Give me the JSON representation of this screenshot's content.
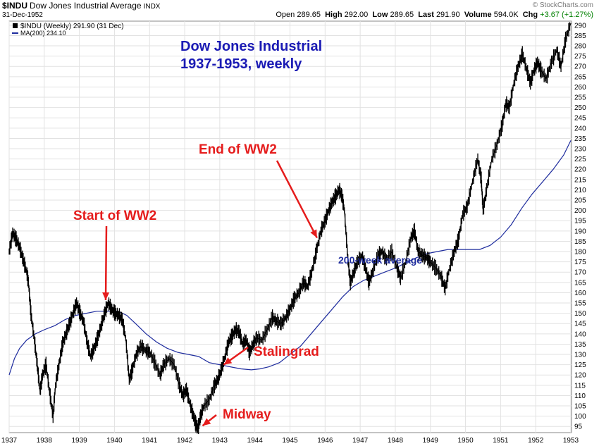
{
  "header": {
    "symbol": "$INDU",
    "full_name": "Dow Jones Industrial Average",
    "exchange": "INDX",
    "date": "31-Dec-1952",
    "open_label": "Open",
    "open": "289.65",
    "high_label": "High",
    "high": "292.00",
    "low_label": "Low",
    "low": "289.65",
    "last_label": "Last",
    "last": "291.90",
    "volume_label": "Volume",
    "volume": "594.0K",
    "chg_label": "Chg",
    "chg": "+3.67 (+1.27%)",
    "credit": "© StockCharts.com"
  },
  "legend": {
    "price": "$INDU (Weekly) 291.90 (31 Dec)",
    "ma": "MA(200) 234.10"
  },
  "colors": {
    "price": "#000000",
    "ma": "#1f2d9e",
    "title": "#1a1ab4",
    "annotation": "#e51c1c",
    "chg": "#008000"
  },
  "chart_data": {
    "type": "line",
    "title": "Dow Jones Industrial\n1937-1953, weekly",
    "x_ticks": [
      "1937",
      "1938",
      "1939",
      "1940",
      "1941",
      "1942",
      "1943",
      "1944",
      "1945",
      "1946",
      "1947",
      "1948",
      "1949",
      "1950",
      "1951",
      "1952",
      "1953"
    ],
    "y_ticks": [
      95,
      100,
      105,
      110,
      115,
      120,
      125,
      130,
      135,
      140,
      145,
      150,
      155,
      160,
      165,
      170,
      175,
      180,
      185,
      190,
      195,
      200,
      205,
      210,
      215,
      220,
      225,
      230,
      235,
      240,
      245,
      250,
      255,
      260,
      265,
      270,
      275,
      280,
      285,
      290
    ],
    "ylim": [
      92,
      292
    ],
    "grid": true,
    "series": [
      {
        "name": "$INDU (Weekly)",
        "points": [
          [
            1937.0,
            180
          ],
          [
            1937.1,
            189
          ],
          [
            1937.2,
            186
          ],
          [
            1937.3,
            182
          ],
          [
            1937.4,
            176
          ],
          [
            1937.5,
            170
          ],
          [
            1937.55,
            165
          ],
          [
            1937.62,
            150
          ],
          [
            1937.72,
            137
          ],
          [
            1937.8,
            125
          ],
          [
            1937.88,
            112
          ],
          [
            1937.95,
            120
          ],
          [
            1938.05,
            125
          ],
          [
            1938.15,
            112
          ],
          [
            1938.25,
            100
          ],
          [
            1938.32,
            115
          ],
          [
            1938.42,
            125
          ],
          [
            1938.52,
            135
          ],
          [
            1938.62,
            140
          ],
          [
            1938.72,
            145
          ],
          [
            1938.82,
            150
          ],
          [
            1938.92,
            155
          ],
          [
            1939.02,
            150
          ],
          [
            1939.12,
            146
          ],
          [
            1939.22,
            136
          ],
          [
            1939.32,
            129
          ],
          [
            1939.42,
            133
          ],
          [
            1939.52,
            138
          ],
          [
            1939.62,
            144
          ],
          [
            1939.72,
            150
          ],
          [
            1939.82,
            155
          ],
          [
            1939.92,
            152
          ],
          [
            1940.02,
            150
          ],
          [
            1940.12,
            149
          ],
          [
            1940.22,
            147
          ],
          [
            1940.32,
            138
          ],
          [
            1940.42,
            118
          ],
          [
            1940.5,
            122
          ],
          [
            1940.62,
            130
          ],
          [
            1940.75,
            134
          ],
          [
            1940.88,
            132
          ],
          [
            1941.0,
            131
          ],
          [
            1941.15,
            126
          ],
          [
            1941.3,
            120
          ],
          [
            1941.4,
            125
          ],
          [
            1941.55,
            128
          ],
          [
            1941.7,
            125
          ],
          [
            1941.85,
            115
          ],
          [
            1941.95,
            110
          ],
          [
            1942.05,
            113
          ],
          [
            1942.15,
            106
          ],
          [
            1942.25,
            100
          ],
          [
            1942.32,
            96
          ],
          [
            1942.38,
            94
          ],
          [
            1942.45,
            100
          ],
          [
            1942.55,
            105
          ],
          [
            1942.7,
            108
          ],
          [
            1942.85,
            115
          ],
          [
            1942.95,
            118
          ],
          [
            1943.05,
            123
          ],
          [
            1943.15,
            129
          ],
          [
            1943.25,
            136
          ],
          [
            1943.35,
            139
          ],
          [
            1943.45,
            142
          ],
          [
            1943.55,
            141
          ],
          [
            1943.65,
            135
          ],
          [
            1943.75,
            137
          ],
          [
            1943.85,
            131
          ],
          [
            1943.95,
            135
          ],
          [
            1944.05,
            138
          ],
          [
            1944.2,
            137
          ],
          [
            1944.35,
            142
          ],
          [
            1944.5,
            148
          ],
          [
            1944.62,
            146
          ],
          [
            1944.75,
            145
          ],
          [
            1944.88,
            148
          ],
          [
            1945.0,
            152
          ],
          [
            1945.12,
            157
          ],
          [
            1945.25,
            160
          ],
          [
            1945.38,
            165
          ],
          [
            1945.5,
            163
          ],
          [
            1945.62,
            170
          ],
          [
            1945.75,
            180
          ],
          [
            1945.88,
            190
          ],
          [
            1946.0,
            195
          ],
          [
            1946.1,
            200
          ],
          [
            1946.2,
            204
          ],
          [
            1946.3,
            207
          ],
          [
            1946.4,
            210
          ],
          [
            1946.48,
            207
          ],
          [
            1946.55,
            200
          ],
          [
            1946.65,
            176
          ],
          [
            1946.72,
            165
          ],
          [
            1946.82,
            170
          ],
          [
            1946.92,
            175
          ],
          [
            1947.05,
            178
          ],
          [
            1947.15,
            172
          ],
          [
            1947.25,
            165
          ],
          [
            1947.35,
            170
          ],
          [
            1947.5,
            178
          ],
          [
            1947.62,
            180
          ],
          [
            1947.75,
            176
          ],
          [
            1947.9,
            180
          ],
          [
            1948.05,
            172
          ],
          [
            1948.15,
            167
          ],
          [
            1948.3,
            175
          ],
          [
            1948.45,
            187
          ],
          [
            1948.55,
            190
          ],
          [
            1948.65,
            180
          ],
          [
            1948.78,
            178
          ],
          [
            1948.9,
            177
          ],
          [
            1949.0,
            175
          ],
          [
            1949.15,
            172
          ],
          [
            1949.3,
            168
          ],
          [
            1949.42,
            162
          ],
          [
            1949.55,
            172
          ],
          [
            1949.68,
            180
          ],
          [
            1949.8,
            186
          ],
          [
            1949.92,
            198
          ],
          [
            1950.05,
            202
          ],
          [
            1950.2,
            214
          ],
          [
            1950.35,
            225
          ],
          [
            1950.45,
            215
          ],
          [
            1950.5,
            200
          ],
          [
            1950.6,
            210
          ],
          [
            1950.75,
            225
          ],
          [
            1950.9,
            232
          ],
          [
            1951.05,
            242
          ],
          [
            1951.15,
            252
          ],
          [
            1951.25,
            250
          ],
          [
            1951.38,
            262
          ],
          [
            1951.5,
            270
          ],
          [
            1951.62,
            276
          ],
          [
            1951.75,
            268
          ],
          [
            1951.85,
            262
          ],
          [
            1951.95,
            268
          ],
          [
            1952.05,
            272
          ],
          [
            1952.15,
            268
          ],
          [
            1952.3,
            264
          ],
          [
            1952.45,
            272
          ],
          [
            1952.6,
            278
          ],
          [
            1952.72,
            270
          ],
          [
            1952.85,
            283
          ],
          [
            1953.0,
            291
          ]
        ]
      },
      {
        "name": "MA(200)",
        "points": [
          [
            1937.0,
            120
          ],
          [
            1937.15,
            128
          ],
          [
            1937.3,
            133
          ],
          [
            1937.5,
            137
          ],
          [
            1937.75,
            140
          ],
          [
            1938.0,
            142
          ],
          [
            1938.3,
            144
          ],
          [
            1938.6,
            147
          ],
          [
            1938.9,
            149
          ],
          [
            1939.2,
            150
          ],
          [
            1939.5,
            151
          ],
          [
            1939.8,
            151
          ],
          [
            1940.1,
            151
          ],
          [
            1940.35,
            149
          ],
          [
            1940.6,
            145
          ],
          [
            1940.9,
            140
          ],
          [
            1941.2,
            136
          ],
          [
            1941.5,
            133
          ],
          [
            1941.8,
            131
          ],
          [
            1942.1,
            130
          ],
          [
            1942.4,
            129
          ],
          [
            1942.7,
            126
          ],
          [
            1943.0,
            125
          ],
          [
            1943.3,
            124
          ],
          [
            1943.6,
            123
          ],
          [
            1943.9,
            122.5
          ],
          [
            1944.15,
            123
          ],
          [
            1944.4,
            124
          ],
          [
            1944.7,
            126
          ],
          [
            1945.0,
            130
          ],
          [
            1945.3,
            134
          ],
          [
            1945.6,
            140
          ],
          [
            1945.9,
            146
          ],
          [
            1946.2,
            152
          ],
          [
            1946.5,
            158
          ],
          [
            1946.8,
            163
          ],
          [
            1947.1,
            166
          ],
          [
            1947.4,
            168
          ],
          [
            1947.7,
            170
          ],
          [
            1948.0,
            172
          ],
          [
            1948.3,
            174.5
          ],
          [
            1948.6,
            177
          ],
          [
            1948.9,
            179
          ],
          [
            1949.2,
            180
          ],
          [
            1949.5,
            181
          ],
          [
            1949.8,
            181
          ],
          [
            1950.1,
            181
          ],
          [
            1950.4,
            181
          ],
          [
            1950.7,
            183
          ],
          [
            1951.0,
            187
          ],
          [
            1951.3,
            193
          ],
          [
            1951.6,
            201
          ],
          [
            1951.9,
            208
          ],
          [
            1952.2,
            214
          ],
          [
            1952.5,
            220
          ],
          [
            1952.8,
            227
          ],
          [
            1953.0,
            234
          ]
        ]
      }
    ],
    "annotations": [
      {
        "text": "Start of WW2",
        "x": 1939.75,
        "y": 155
      },
      {
        "text": "End of WW2",
        "x": 1945.85,
        "y": 186
      },
      {
        "text": "200-week average",
        "x": 1946.8,
        "y": 152
      },
      {
        "text": "Stalingrad",
        "x": 1943.05,
        "y": 126
      },
      {
        "text": "Midway",
        "x": 1942.45,
        "y": 95
      }
    ]
  }
}
